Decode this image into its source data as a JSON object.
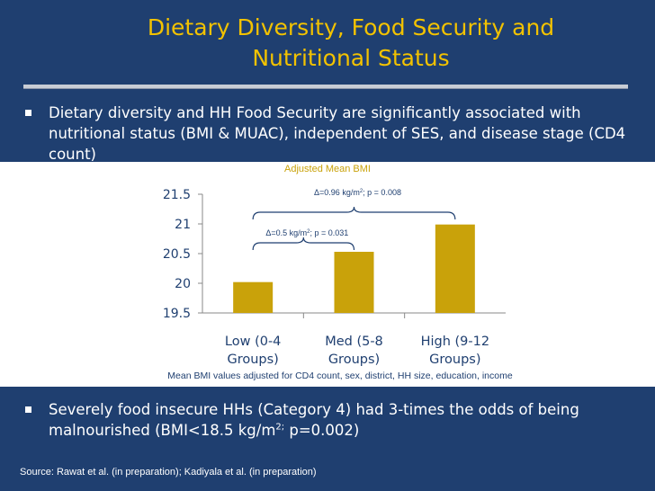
{
  "title": {
    "line1": "Dietary Diversity, Food Security and",
    "line2": "Nutritional Status"
  },
  "bullets": {
    "b1": "Dietary diversity and HH Food Security are significantly associated with nutritional status (BMI & MUAC), independent of SES, and disease stage (CD4 count)",
    "b2_pre": "Severely food insecure HHs (Category 4) had 3-times the odds of being malnourished (BMI<18.5 kg/m",
    "b2_sup": "2;",
    "b2_post": " p=0.002)"
  },
  "source": "Source:  Rawat et al. (in preparation); Kadiyala et al. (in preparation)",
  "chart_data": {
    "type": "bar",
    "title": "Adjusted Mean BMI",
    "note": "Mean BMI values adjusted for CD4 count, sex, district, HH size, education, income",
    "categories": [
      [
        "Low (0-4",
        "Groups)"
      ],
      [
        "Med (5-8",
        "Groups)"
      ],
      [
        "High (9-12",
        "Groups)"
      ]
    ],
    "values": [
      20.02,
      20.53,
      20.99
    ],
    "ylim": [
      19.5,
      21.5
    ],
    "yticks": [
      "19.5",
      "20",
      "20.5",
      "21",
      "21.5"
    ],
    "ytick_values": [
      19.5,
      20,
      20.5,
      21,
      21.5
    ],
    "bar_color": "#c9a20a",
    "grid": false,
    "annotations": [
      {
        "text": "Δ=0.5 kg/m",
        "sup": "2",
        "rest": "; p = 0.031",
        "from": 0,
        "to": 1
      },
      {
        "text": "Δ=0.96 kg/m",
        "sup": "2",
        "rest": "; p = 0.008",
        "from": 0,
        "to": 2
      }
    ]
  },
  "colors": {
    "background": "#1f3f70",
    "title": "#f2c200",
    "chart_bg": "#ffffff"
  }
}
